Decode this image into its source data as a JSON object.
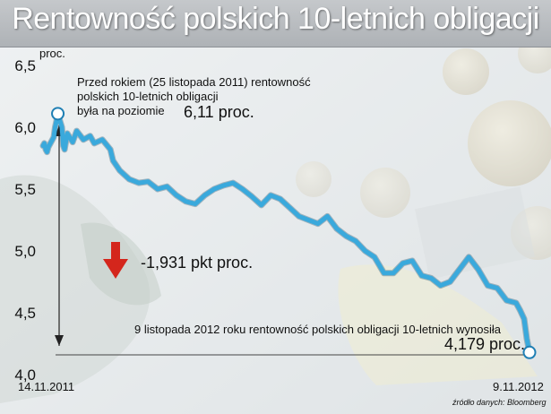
{
  "chart_data": {
    "type": "line",
    "title": "Rentowność polskich 10-letnich obligacji",
    "ylabel": "proc.",
    "ylim": [
      4.0,
      6.5
    ],
    "yticks": [
      "6,5",
      "6,0",
      "5,5",
      "5,0",
      "4,5",
      "4,0"
    ],
    "ytick_values": [
      6.5,
      6.0,
      5.5,
      5.0,
      4.5,
      4.0
    ],
    "x_start_label": "14.11.2011",
    "x_end_label": "9.11.2012",
    "x": [
      "2011-11-14",
      "2011-11-15",
      "2011-11-16",
      "2011-11-17",
      "2011-11-18",
      "2011-11-21",
      "2011-11-22",
      "2011-11-23",
      "2011-11-24",
      "2011-11-25",
      "2011-11-28",
      "2011-11-29",
      "2011-11-30",
      "2011-12-02",
      "2011-12-06",
      "2011-12-09",
      "2011-12-14",
      "2011-12-19",
      "2011-12-22",
      "2011-12-28",
      "2012-01-03",
      "2012-01-05",
      "2012-01-10",
      "2012-01-17",
      "2012-01-24",
      "2012-01-31",
      "2012-02-07",
      "2012-02-14",
      "2012-02-21",
      "2012-02-28",
      "2012-03-06",
      "2012-03-13",
      "2012-03-20",
      "2012-03-27",
      "2012-04-03",
      "2012-04-10",
      "2012-04-17",
      "2012-04-24",
      "2012-05-01",
      "2012-05-08",
      "2012-05-15",
      "2012-05-22",
      "2012-05-29",
      "2012-06-05",
      "2012-06-12",
      "2012-06-19",
      "2012-06-26",
      "2012-07-03",
      "2012-07-10",
      "2012-07-17",
      "2012-07-24",
      "2012-07-31",
      "2012-08-07",
      "2012-08-14",
      "2012-08-21",
      "2012-08-28",
      "2012-09-04",
      "2012-09-11",
      "2012-09-18",
      "2012-09-25",
      "2012-10-02",
      "2012-10-09",
      "2012-10-16",
      "2012-10-23",
      "2012-10-30",
      "2012-11-02",
      "2012-11-05",
      "2012-11-07",
      "2012-11-09"
    ],
    "series": [
      {
        "values": [
          5.85,
          5.87,
          5.82,
          5.8,
          5.84,
          5.9,
          5.92,
          6.0,
          6.05,
          6.11,
          6.0,
          5.85,
          5.82,
          5.95,
          5.88,
          5.97,
          5.9,
          5.93,
          5.87,
          5.9,
          5.82,
          5.73,
          5.65,
          5.58,
          5.55,
          5.56,
          5.5,
          5.52,
          5.45,
          5.4,
          5.38,
          5.45,
          5.5,
          5.53,
          5.55,
          5.5,
          5.44,
          5.37,
          5.45,
          5.42,
          5.35,
          5.28,
          5.25,
          5.22,
          5.28,
          5.18,
          5.12,
          5.08,
          5.0,
          4.95,
          4.82,
          4.82,
          4.9,
          4.92,
          4.8,
          4.78,
          4.72,
          4.75,
          4.85,
          4.95,
          4.85,
          4.72,
          4.7,
          4.6,
          4.58,
          4.52,
          4.45,
          4.29,
          4.18
        ],
        "color": "#3aa9dc"
      }
    ],
    "markers": [
      {
        "x": "2011-11-25",
        "y": 6.11
      },
      {
        "x": "2012-11-09",
        "y": 4.179
      }
    ],
    "grid": false
  },
  "annotations": {
    "top_lines": [
      "Przed rokiem (25 listopada 2011) rentowność",
      "polskich 10-letnich obligacji",
      "była na poziomie"
    ],
    "top_value": "6,11 proc.",
    "change": "-1,931 pkt proc.",
    "bottom_text": "9 listopada 2012 roku rentowność polskich obligacji 10-letnich wynosiła",
    "bottom_value": "4,179 proc.",
    "source": "źródło danych: Bloomberg"
  },
  "colors": {
    "line": "#3aa9dc",
    "line_shadow": "#1a4a66",
    "down_arrow": "#d4261c",
    "title_text": "#ffffff"
  }
}
